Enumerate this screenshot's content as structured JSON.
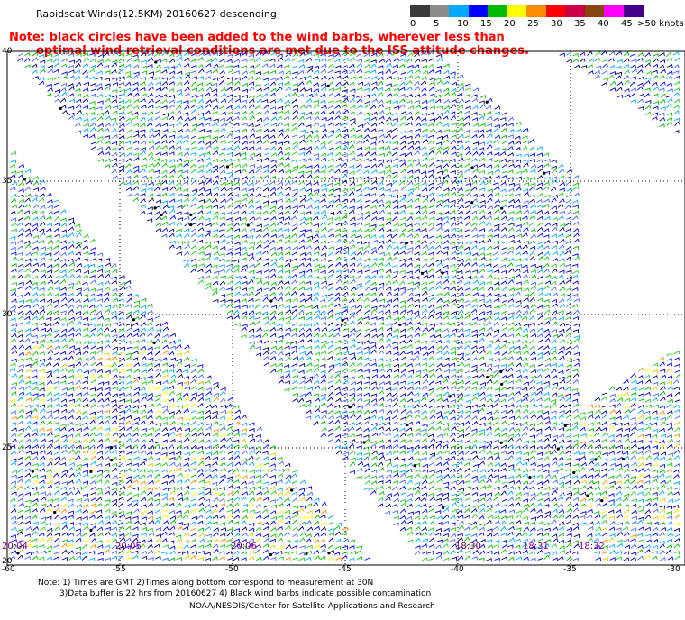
{
  "title": "Rapidscat Winds(12.5KM) 20160627 descending",
  "note": {
    "line1": "Note: black circles have been added to the wind barbs, wherever less than",
    "line2": "optimal wind retrieval conditions are met due to the ISS attitude changes."
  },
  "colorbar": {
    "units": "knots",
    "bins": [
      {
        "label": "0",
        "color": "#3a3a3a"
      },
      {
        "label": "5",
        "color": "#8c8c8c"
      },
      {
        "label": "10",
        "color": "#00aaff"
      },
      {
        "label": "15",
        "color": "#0000ff"
      },
      {
        "label": "20",
        "color": "#00bb00"
      },
      {
        "label": "25",
        "color": "#ffff00"
      },
      {
        "label": "30",
        "color": "#ff8c00"
      },
      {
        "label": "35",
        "color": "#ff0000"
      },
      {
        "label": "40",
        "color": "#cc0044"
      },
      {
        "label": "45",
        "color": "#884411"
      },
      {
        "label": ">50",
        "color": "#ff00ff"
      },
      {
        "label": "",
        "color": "#440088"
      }
    ],
    "last_label": ">50 knots"
  },
  "axes": {
    "lat_labels": [
      "40",
      "35",
      "30",
      "25",
      "20"
    ],
    "lon_labels": [
      "-60",
      "-55",
      "-50",
      "-45",
      "-40",
      "-35",
      "-30"
    ]
  },
  "time_labels": [
    "20:04",
    "20:05",
    "20:06",
    "18:30",
    "18:31",
    "18:32"
  ],
  "footer": {
    "line1": "Note: 1) Times are GMT 2)Times along bottom correspond to measurement at 30N",
    "line2": "3)Data buffer is 22 hrs from 20160627 4) Black wind barbs indicate possible contamination",
    "line3": "NOAA/NESDIS/Center for Satellite Applications and Research"
  }
}
